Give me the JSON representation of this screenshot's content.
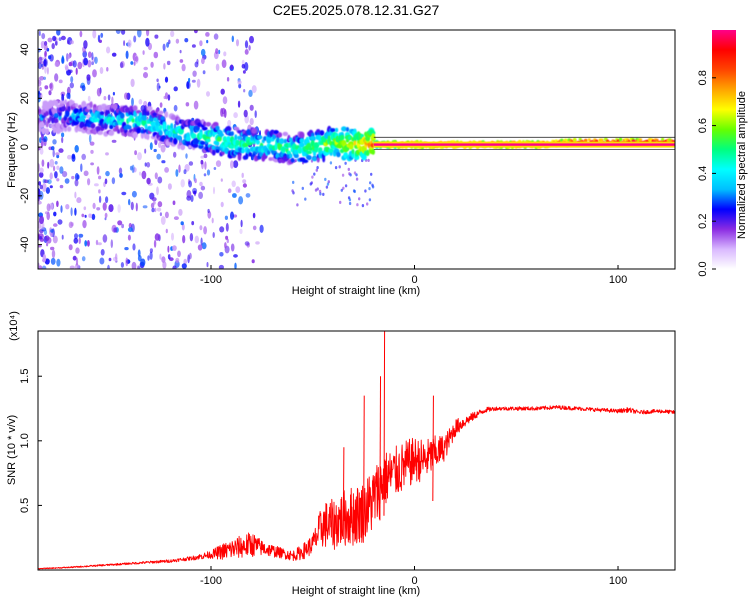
{
  "title": "C2E5.2025.078.12.31.G27",
  "chart_data": [
    {
      "type": "heatmap",
      "xlabel": "Height of straight line (km)",
      "ylabel": "Frequency (Hz)",
      "xlim": [
        -185,
        128
      ],
      "ylim": [
        -50,
        48
      ],
      "xticks": [
        -100,
        0,
        100
      ],
      "yticks": [
        -40,
        -20,
        0,
        20,
        40
      ],
      "colorbar": {
        "label": "Normalized spectral amplitude",
        "range": [
          0,
          1
        ],
        "ticks": [
          "0.0",
          "0.2",
          "0.4",
          "0.6",
          "0.8"
        ],
        "colors": [
          "#ffffff",
          "#d9b8ff",
          "#8a2be2",
          "#0000ff",
          "#00bfff",
          "#00ffff",
          "#00ff7f",
          "#66ff00",
          "#ffff00",
          "#ffa500",
          "#ff4500",
          "#ff0000",
          "#ff0088"
        ]
      },
      "ridge": {
        "x": [
          -185,
          -170,
          -160,
          -150,
          -140,
          -130,
          -120,
          -110,
          -100,
          -90,
          -80,
          -70,
          -60,
          -50,
          -40,
          -30,
          -20,
          -10,
          0,
          20,
          40,
          60,
          80,
          100,
          128
        ],
        "freq": [
          12,
          13,
          12,
          11,
          11,
          10,
          7,
          5,
          4,
          2,
          1,
          1,
          -1,
          0,
          2,
          1,
          1,
          1,
          1,
          1,
          1,
          1,
          2,
          2,
          2
        ],
        "amplitude": [
          0.25,
          0.35,
          0.4,
          0.4,
          0.45,
          0.45,
          0.45,
          0.45,
          0.5,
          0.5,
          0.5,
          0.5,
          0.5,
          0.55,
          0.6,
          0.65,
          0.8,
          0.9,
          0.95,
          0.95,
          0.95,
          0.95,
          0.95,
          0.95,
          0.95
        ]
      }
    },
    {
      "type": "line",
      "xlabel": "Height of straight line (km)",
      "ylabel": "SNR (10 * v/v)",
      "y_scale_label": "(x10⁴)",
      "xlim": [
        -185,
        128
      ],
      "ylim": [
        0,
        1.85
      ],
      "xticks": [
        -100,
        0,
        100
      ],
      "yticks": [
        0.5,
        1.0,
        1.5
      ],
      "series": [
        {
          "color": "#ff0000",
          "x": [
            -185,
            -170,
            -160,
            -150,
            -140,
            -130,
            -120,
            -110,
            -100,
            -95,
            -90,
            -85,
            -80,
            -75,
            -70,
            -65,
            -60,
            -55,
            -50,
            -45,
            -40,
            -35,
            -30,
            -25,
            -20,
            -15,
            -10,
            -5,
            0,
            5,
            10,
            15,
            20,
            25,
            30,
            35,
            40,
            50,
            60,
            70,
            80,
            90,
            100,
            105,
            110,
            120,
            128
          ],
          "y": [
            0.01,
            0.02,
            0.03,
            0.04,
            0.05,
            0.06,
            0.07,
            0.09,
            0.12,
            0.14,
            0.16,
            0.18,
            0.2,
            0.17,
            0.15,
            0.13,
            0.11,
            0.14,
            0.2,
            0.35,
            0.35,
            0.4,
            0.42,
            0.45,
            0.55,
            0.7,
            0.75,
            0.8,
            0.85,
            0.85,
            0.9,
            0.95,
            1.1,
            1.15,
            1.2,
            1.24,
            1.25,
            1.25,
            1.25,
            1.26,
            1.25,
            1.24,
            1.23,
            1.24,
            1.22,
            1.23,
            1.22
          ],
          "noise": [
            0.003,
            0.005,
            0.006,
            0.007,
            0.008,
            0.01,
            0.012,
            0.015,
            0.03,
            0.06,
            0.08,
            0.09,
            0.1,
            0.06,
            0.05,
            0.04,
            0.04,
            0.06,
            0.08,
            0.18,
            0.2,
            0.22,
            0.24,
            0.24,
            0.26,
            0.22,
            0.2,
            0.2,
            0.18,
            0.16,
            0.14,
            0.1,
            0.07,
            0.04,
            0.03,
            0.02,
            0.015,
            0.015,
            0.015,
            0.015,
            0.015,
            0.015,
            0.015,
            0.02,
            0.015,
            0.015,
            0.015
          ],
          "spikes": [
            {
              "x": -15,
              "y": 1.85
            },
            {
              "x": -17,
              "y": 1.5
            },
            {
              "x": -25,
              "y": 1.35
            },
            {
              "x": 9,
              "y": 1.35
            },
            {
              "x": -35,
              "y": 0.95
            }
          ]
        }
      ]
    }
  ]
}
